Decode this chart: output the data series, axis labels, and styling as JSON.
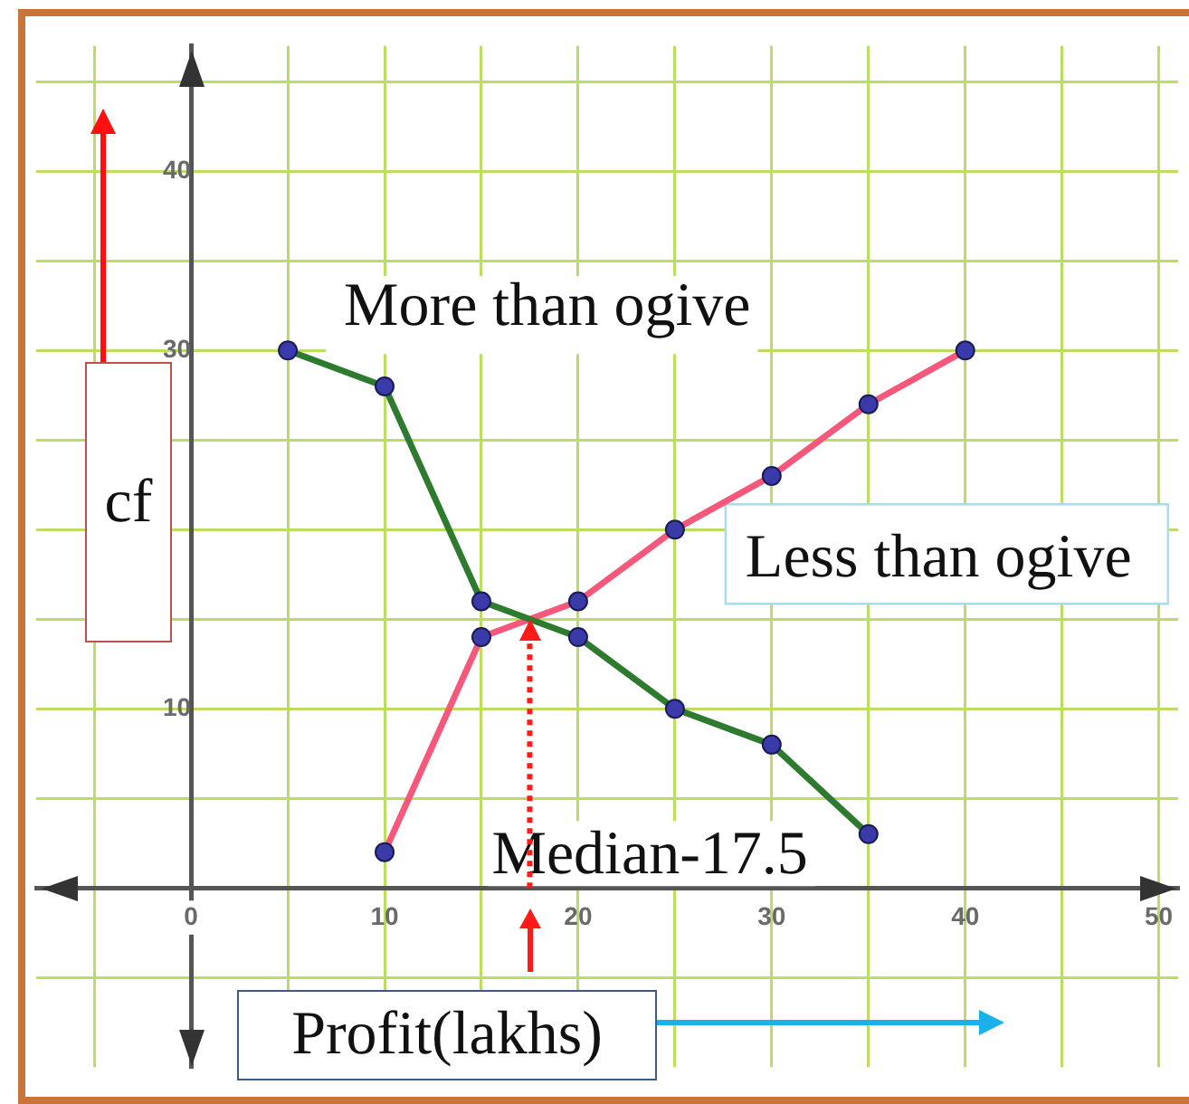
{
  "chart_data": {
    "type": "line",
    "xlabel": "Profit(lakhs)",
    "ylabel": "cf",
    "series": [
      {
        "name": "More than ogive",
        "color": "#2e7a2e",
        "colors": [
          "#3a3aa8",
          "#3a3aa8",
          "#3a3aa8",
          "#3a3aa8",
          "#3a3aa8",
          "#3a3aa8",
          "#3a3aa8"
        ],
        "x": [
          5,
          10,
          15,
          20,
          25,
          30,
          35
        ],
        "values": [
          30,
          28,
          16,
          14,
          10,
          8,
          3
        ]
      },
      {
        "name": "Less than ogive",
        "color": "#f5587a",
        "colors": [
          "#3a3aa8",
          "#3a3aa8",
          "#3a3aa8",
          "#3a3aa8",
          "#3a3aa8",
          "#3a3aa8",
          "#3a3aa8"
        ],
        "x": [
          10,
          15,
          20,
          25,
          30,
          35,
          40
        ],
        "values": [
          2,
          14,
          16,
          20,
          23,
          27,
          30
        ]
      }
    ],
    "ref_lines": [
      {
        "axis": "x",
        "value": 17.5,
        "label": "Median-17.5",
        "color": "#ff1a1a",
        "line_style": "dotted"
      }
    ],
    "xlim": [
      -8,
      51
    ],
    "ylim": [
      -10,
      47
    ],
    "xticks": [
      {
        "value": -5,
        "label": null
      },
      0,
      {
        "value": 5,
        "label": null
      },
      10,
      {
        "value": 15,
        "label": null
      },
      20,
      {
        "value": 25,
        "label": null
      },
      30,
      {
        "value": 35,
        "label": null
      },
      40,
      {
        "value": 45,
        "label": null
      },
      50
    ],
    "yticks": [
      {
        "value": -5,
        "label": null
      },
      {
        "value": 0,
        "label": null
      },
      {
        "value": 5,
        "label": null
      },
      10,
      {
        "value": 15,
        "label": null
      },
      {
        "value": 20,
        "label": null
      },
      {
        "value": 25,
        "label": null
      },
      30,
      {
        "value": 35,
        "label": null
      },
      40,
      {
        "value": 45,
        "label": null
      }
    ],
    "grid": true,
    "legend": false,
    "marker": "circle",
    "line_style": "solid"
  }
}
